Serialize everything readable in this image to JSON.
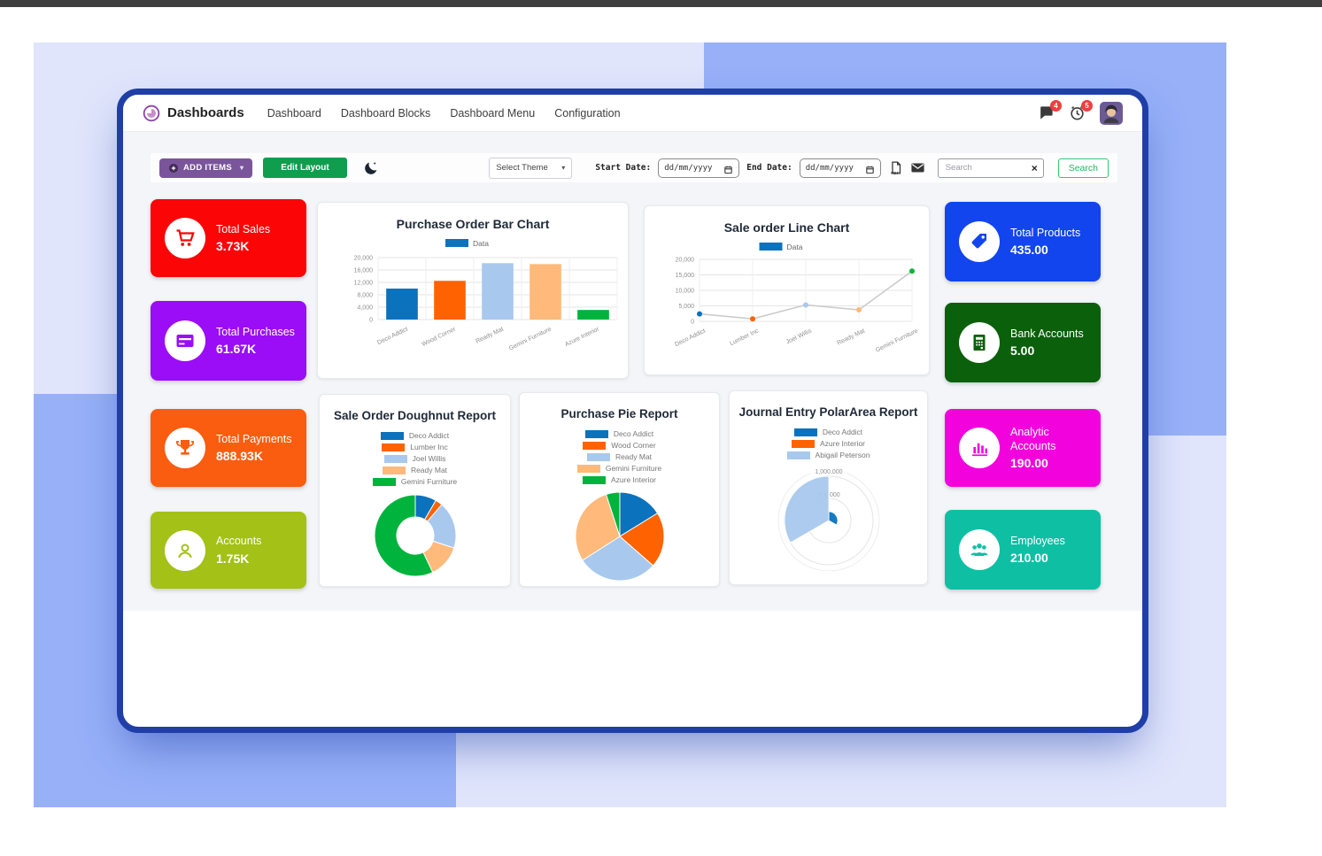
{
  "navbar": {
    "app_title": "Dashboards",
    "menu": [
      "Dashboard",
      "Dashboard Blocks",
      "Dashboard Menu",
      "Configuration"
    ],
    "message_badge": "4",
    "activity_badge": "5"
  },
  "toolbar": {
    "add_items_label": "ADD ITEMS",
    "edit_layout_label": "Edit Layout",
    "select_theme_label": "Select Theme",
    "start_date_label": "Start Date:",
    "end_date_label": "End Date:",
    "date_placeholder": "dd/mm/yyyy",
    "search_placeholder": "Search",
    "search_button_label": "Search"
  },
  "kpi_cards": [
    {
      "id": "total-sales",
      "label": "Total Sales",
      "value": "3.73K",
      "color": "#fb0507",
      "icon": "cart-icon"
    },
    {
      "id": "total-purchases",
      "label": "Total Purchases",
      "value": "61.67K",
      "color": "#9b0df6",
      "icon": "credit-card-icon"
    },
    {
      "id": "total-payments",
      "label": "Total Payments",
      "value": "888.93K",
      "color": "#fa5c10",
      "icon": "trophy-icon"
    },
    {
      "id": "accounts",
      "label": "Accounts",
      "value": "1.75K",
      "color": "#a3c116",
      "icon": "user-icon"
    },
    {
      "id": "total-products",
      "label": "Total Products",
      "value": "435.00",
      "color": "#1245ee",
      "icon": "tag-icon"
    },
    {
      "id": "bank-accounts",
      "label": "Bank Accounts",
      "value": "5.00",
      "color": "#0b600b",
      "icon": "bank-building-icon"
    },
    {
      "id": "analytic-accounts",
      "label": "Analytic Accounts",
      "value": "190.00",
      "color": "#f203dd",
      "icon": "bar-chart-icon"
    },
    {
      "id": "employees",
      "label": "Employees",
      "value": "210.00",
      "color": "#0fbfa4",
      "icon": "employees-icon"
    }
  ],
  "chart_data": [
    {
      "type": "bar",
      "title": "Purchase Order Bar Chart",
      "legend": [
        {
          "label": "Data",
          "color": "#0b72bd"
        }
      ],
      "categories": [
        "Deco Addict",
        "Wood Corner",
        "Ready Mat",
        "Gemini Furniture",
        "Azure Interior"
      ],
      "values": [
        10000,
        12500,
        18200,
        17900,
        3100
      ],
      "bar_colors": [
        "#0b72bd",
        "#ff6200",
        "#a9c8ed",
        "#ffb97a",
        "#00b33c"
      ],
      "ylim": [
        0,
        20000
      ],
      "yticks": [
        0,
        4000,
        8000,
        12000,
        16000,
        20000
      ],
      "grid": true,
      "legend_position": "top"
    },
    {
      "type": "line",
      "title": "Sale order Line Chart",
      "legend": [
        {
          "label": "Data",
          "color": "#0b72bd"
        }
      ],
      "categories": [
        "Deco Addict",
        "Lumber Inc",
        "Joel Willis",
        "Ready Mat",
        "Gemini Furniture"
      ],
      "values": [
        2400,
        800,
        5300,
        3700,
        16200
      ],
      "point_colors": [
        "#0b72bd",
        "#ff6200",
        "#a9c8ed",
        "#ffb97a",
        "#00b33c"
      ],
      "line_color": "#cccccc",
      "ylim": [
        0,
        20000
      ],
      "yticks": [
        0,
        5000,
        10000,
        15000,
        20000
      ],
      "grid": true,
      "legend_position": "top"
    },
    {
      "type": "doughnut",
      "title": "Sale Order Doughnut Report",
      "labels": [
        "Deco Addict",
        "Lumber Inc",
        "Joel Willis",
        "Ready Mat",
        "Gemini Furniture"
      ],
      "values": [
        2400,
        800,
        5300,
        3700,
        16200
      ],
      "colors": [
        "#0b72bd",
        "#ff6200",
        "#a9c8ed",
        "#ffb97a",
        "#00b33c"
      ],
      "legend_position": "top"
    },
    {
      "type": "pie",
      "title": "Purchase Pie Report",
      "labels": [
        "Deco Addict",
        "Wood Corner",
        "Ready Mat",
        "Gemini Furniture",
        "Azure Interior"
      ],
      "values": [
        10000,
        12500,
        18200,
        17900,
        3100
      ],
      "colors": [
        "#0b72bd",
        "#ff6200",
        "#a9c8ed",
        "#ffb97a",
        "#00b33c"
      ],
      "legend_position": "top"
    },
    {
      "type": "polarArea",
      "title": "Journal Entry PolarArea Report",
      "labels": [
        "Deco Addict",
        "Azure Interior",
        "Abigail Peterson"
      ],
      "values": [
        200000,
        30000,
        1000000
      ],
      "colors": [
        "#0b72bd",
        "#ff6200",
        "#a9c8ed"
      ],
      "rmax": 1000000,
      "rticks": [
        {
          "value": 500000,
          "label": "500,000"
        },
        {
          "value": 1000000,
          "label": "1,000,000"
        }
      ],
      "legend_position": "top"
    }
  ]
}
